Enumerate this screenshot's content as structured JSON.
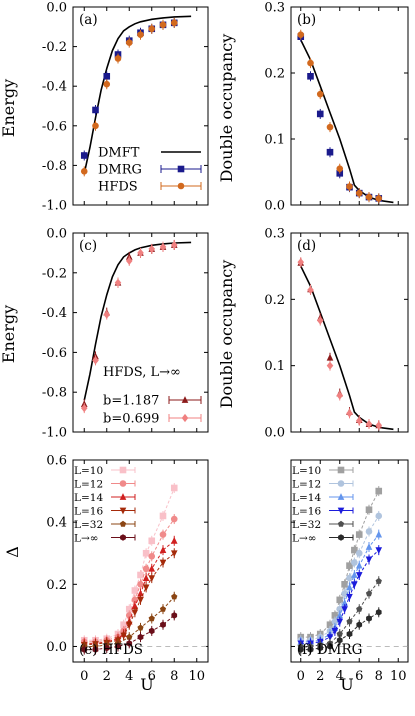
{
  "chart_data": [
    {
      "id": "a",
      "type": "line",
      "panel_label": "(a)",
      "xlabel": "",
      "ylabel": "Energy",
      "xlim": [
        -1,
        11
      ],
      "ylim": [
        -1.0,
        0.0
      ],
      "yticks": [
        "0.0",
        "-0.2",
        "-0.4",
        "-0.6",
        "-0.8",
        "-1.0"
      ],
      "legend": {
        "placement": "bottom-left",
        "entries": [
          "DMFT",
          "DMRG",
          "HFDS"
        ]
      },
      "series": [
        {
          "name": "DMFT",
          "style": "line",
          "color": "#000000",
          "x": [
            0,
            0.5,
            1,
            1.5,
            2,
            2.5,
            3,
            3.5,
            4,
            4.5,
            5,
            6,
            7,
            8,
            9.5
          ],
          "y": [
            -0.84,
            -0.71,
            -0.56,
            -0.42,
            -0.31,
            -0.22,
            -0.16,
            -0.12,
            -0.1,
            -0.085,
            -0.075,
            -0.062,
            -0.055,
            -0.05,
            -0.047
          ]
        },
        {
          "name": "DMRG",
          "style": "square",
          "color": "#1a1a8c",
          "x": [
            0,
            1,
            2,
            3,
            4,
            5,
            6,
            7,
            8
          ],
          "y": [
            -0.75,
            -0.52,
            -0.35,
            -0.24,
            -0.17,
            -0.13,
            -0.11,
            -0.09,
            -0.08
          ]
        },
        {
          "name": "HFDS",
          "style": "circle",
          "color": "#d2691e",
          "x": [
            0,
            1,
            2,
            3,
            4,
            5,
            6,
            7,
            8
          ],
          "y": [
            -0.83,
            -0.6,
            -0.39,
            -0.26,
            -0.18,
            -0.14,
            -0.11,
            -0.09,
            -0.08
          ]
        }
      ]
    },
    {
      "id": "b",
      "type": "line",
      "panel_label": "(b)",
      "xlabel": "",
      "ylabel": "Double occupancy",
      "xlim": [
        -1,
        11
      ],
      "ylim": [
        0.0,
        0.3
      ],
      "yticks": [
        "0.3",
        "0.2",
        "0.1",
        "0.0"
      ],
      "series": [
        {
          "name": "DMFT",
          "style": "line",
          "color": "#000000",
          "x": [
            0,
            1,
            2,
            3,
            4,
            5,
            5.5,
            6,
            7,
            8,
            9.5
          ],
          "y": [
            0.25,
            0.22,
            0.18,
            0.14,
            0.1,
            0.055,
            0.03,
            0.022,
            0.012,
            0.007,
            0.004
          ]
        },
        {
          "name": "DMRG",
          "style": "square",
          "color": "#1a1a8c",
          "x": [
            0,
            1,
            2,
            3,
            4,
            5,
            6,
            7,
            8
          ],
          "y": [
            0.255,
            0.195,
            0.138,
            0.08,
            0.048,
            0.027,
            0.018,
            0.012,
            0.01
          ]
        },
        {
          "name": "HFDS",
          "style": "circle",
          "color": "#d2691e",
          "x": [
            0,
            1,
            2,
            3,
            4,
            5,
            6,
            7,
            8
          ],
          "y": [
            0.258,
            0.215,
            0.168,
            0.118,
            0.055,
            0.028,
            0.018,
            0.012,
            0.01
          ]
        }
      ]
    },
    {
      "id": "c",
      "type": "line",
      "panel_label": "(c)",
      "xlabel": "",
      "ylabel": "Energy",
      "xlim": [
        -1,
        11
      ],
      "ylim": [
        -1.0,
        0.0
      ],
      "yticks": [
        "0.0",
        "-0.2",
        "-0.4",
        "-0.6",
        "-0.8",
        "-1.0"
      ],
      "legend": {
        "placement": "bottom-left",
        "title": "HFDS, L→∞",
        "entries": [
          "b=1.187",
          "b=0.699"
        ]
      },
      "series": [
        {
          "name": "DMFT",
          "style": "line",
          "color": "#000000",
          "x": [
            0,
            0.5,
            1,
            1.5,
            2,
            2.5,
            3,
            3.5,
            4,
            4.5,
            5,
            6,
            7,
            8,
            9.5
          ],
          "y": [
            -0.84,
            -0.71,
            -0.56,
            -0.42,
            -0.31,
            -0.22,
            -0.16,
            -0.12,
            -0.1,
            -0.085,
            -0.075,
            -0.062,
            -0.055,
            -0.05,
            -0.047
          ]
        },
        {
          "name": "b=1.187",
          "style": "triangle",
          "color": "#8b1a1a",
          "x": [
            0,
            1,
            2,
            3,
            4,
            5,
            6,
            7,
            8
          ],
          "y": [
            -0.86,
            -0.62,
            -0.4,
            -0.25,
            -0.12,
            -0.1,
            -0.08,
            -0.07,
            -0.06
          ]
        },
        {
          "name": "b=0.699",
          "style": "diamond",
          "color": "#f08080",
          "x": [
            0,
            1,
            2,
            3,
            4,
            5,
            6,
            7,
            8
          ],
          "y": [
            -0.88,
            -0.64,
            -0.41,
            -0.25,
            -0.14,
            -0.1,
            -0.08,
            -0.07,
            -0.06
          ]
        }
      ]
    },
    {
      "id": "d",
      "type": "line",
      "panel_label": "(d)",
      "xlabel": "",
      "ylabel": "Double occupancy",
      "xlim": [
        -1,
        11
      ],
      "ylim": [
        0.0,
        0.3
      ],
      "yticks": [
        "0.3",
        "0.2",
        "0.1",
        "0.0"
      ],
      "series": [
        {
          "name": "DMFT",
          "style": "line",
          "color": "#000000",
          "x": [
            0,
            1,
            2,
            3,
            4,
            5,
            5.5,
            6,
            7,
            8,
            9.5
          ],
          "y": [
            0.25,
            0.22,
            0.18,
            0.14,
            0.1,
            0.055,
            0.03,
            0.022,
            0.012,
            0.007,
            0.004
          ]
        },
        {
          "name": "b=1.187",
          "style": "triangle",
          "color": "#8b1a1a",
          "x": [
            0,
            1,
            2,
            3,
            4,
            5,
            6,
            7,
            8
          ],
          "y": [
            0.255,
            0.215,
            0.172,
            0.112,
            0.058,
            0.03,
            0.018,
            0.012,
            0.01
          ]
        },
        {
          "name": "b=0.699",
          "style": "diamond",
          "color": "#f08080",
          "x": [
            0,
            1,
            2,
            3,
            4,
            5,
            6,
            7,
            8
          ],
          "y": [
            0.256,
            0.214,
            0.168,
            0.1,
            0.055,
            0.028,
            0.017,
            0.012,
            0.01
          ]
        }
      ]
    },
    {
      "id": "e",
      "type": "line",
      "panel_label": "(e) HFDS",
      "xlabel": "U",
      "ylabel": "Δ",
      "xlim": [
        -1,
        11
      ],
      "ylim": [
        -0.05,
        0.6
      ],
      "xticks": [
        "0",
        "2",
        "4",
        "6",
        "8",
        "10"
      ],
      "yticks": [
        "0.6",
        "0.4",
        "0.2",
        "0.0"
      ],
      "legend": {
        "placement": "top-left",
        "entries": [
          "L=10",
          "L=12",
          "L=14",
          "L=16",
          "L=32",
          "L→∞"
        ]
      },
      "series": [
        {
          "name": "L=10",
          "style": "square",
          "color": "#f9c0c8",
          "x": [
            0,
            1,
            2,
            3,
            3.5,
            4,
            4.5,
            5,
            5.5,
            6,
            7,
            8
          ],
          "y": [
            0.02,
            0.02,
            0.025,
            0.04,
            0.07,
            0.12,
            0.18,
            0.23,
            0.3,
            0.34,
            0.42,
            0.51
          ]
        },
        {
          "name": "L=12",
          "style": "circle",
          "color": "#f08a8a",
          "x": [
            0,
            1,
            2,
            3,
            3.5,
            4,
            4.5,
            5,
            5.5,
            6,
            7,
            8
          ],
          "y": [
            0.015,
            0.015,
            0.02,
            0.03,
            0.05,
            0.1,
            0.15,
            0.2,
            0.25,
            0.29,
            0.36,
            0.41
          ]
        },
        {
          "name": "L=14",
          "style": "triangle",
          "color": "#d02020",
          "x": [
            0,
            1,
            2,
            3,
            3.5,
            4,
            4.5,
            5,
            5.5,
            6,
            7,
            8
          ],
          "y": [
            0.01,
            0.01,
            0.015,
            0.025,
            0.04,
            0.08,
            0.13,
            0.17,
            0.22,
            0.25,
            0.31,
            0.34
          ]
        },
        {
          "name": "L=16",
          "style": "tri-down",
          "color": "#a52a0a",
          "x": [
            0,
            1,
            2,
            3,
            3.5,
            4,
            4.5,
            5,
            5.5,
            6,
            7,
            8
          ],
          "y": [
            0.005,
            0.008,
            0.012,
            0.02,
            0.035,
            0.07,
            0.11,
            0.15,
            0.19,
            0.22,
            0.27,
            0.3
          ]
        },
        {
          "name": "L=32",
          "style": "pentagon",
          "color": "#8b4513",
          "x": [
            0,
            1,
            2,
            3,
            4,
            5,
            6,
            7,
            8
          ],
          "y": [
            0.0,
            0.0,
            0.005,
            0.01,
            0.03,
            0.06,
            0.09,
            0.12,
            0.16
          ]
        },
        {
          "name": "L→∞",
          "style": "hexagon",
          "color": "#6b0f1a",
          "x": [
            0,
            1,
            2,
            3,
            4,
            5,
            6,
            7,
            8
          ],
          "y": [
            -0.01,
            -0.01,
            -0.005,
            0.0,
            0.01,
            0.03,
            0.05,
            0.07,
            0.1
          ]
        }
      ]
    },
    {
      "id": "f",
      "type": "line",
      "panel_label": "(f) DMRG",
      "xlabel": "U",
      "ylabel": "",
      "xlim": [
        -1,
        11
      ],
      "ylim": [
        -0.05,
        0.6
      ],
      "xticks": [
        "0",
        "2",
        "4",
        "6",
        "8",
        "10"
      ],
      "legend": {
        "placement": "top-left",
        "entries": [
          "L=10",
          "L=12",
          "L=14",
          "L=16",
          "L=32",
          "L→∞"
        ]
      },
      "series": [
        {
          "name": "L=10",
          "style": "square",
          "color": "#a0a0a0",
          "x": [
            0,
            1,
            2,
            3,
            3.5,
            4,
            4.5,
            5,
            5.5,
            6,
            7,
            8
          ],
          "y": [
            0.03,
            0.03,
            0.04,
            0.07,
            0.1,
            0.15,
            0.2,
            0.26,
            0.31,
            0.36,
            0.44,
            0.5
          ]
        },
        {
          "name": "L=12",
          "style": "circle",
          "color": "#b0c4de",
          "x": [
            0,
            1,
            2,
            3,
            3.5,
            4,
            4.5,
            5,
            5.5,
            6,
            7,
            8
          ],
          "y": [
            0.02,
            0.02,
            0.03,
            0.05,
            0.08,
            0.12,
            0.17,
            0.22,
            0.27,
            0.3,
            0.37,
            0.42
          ]
        },
        {
          "name": "L=14",
          "style": "triangle",
          "color": "#6495ed",
          "x": [
            0,
            1,
            2,
            3,
            3.5,
            4,
            4.5,
            5,
            5.5,
            6,
            7,
            8
          ],
          "y": [
            0.015,
            0.015,
            0.02,
            0.04,
            0.06,
            0.1,
            0.14,
            0.19,
            0.23,
            0.26,
            0.32,
            0.36
          ]
        },
        {
          "name": "L=16",
          "style": "tri-down",
          "color": "#1c1cdc",
          "x": [
            0,
            1,
            2,
            3,
            3.5,
            4,
            4.5,
            5,
            5.5,
            6,
            7,
            8
          ],
          "y": [
            0.01,
            0.01,
            0.015,
            0.03,
            0.05,
            0.08,
            0.12,
            0.16,
            0.2,
            0.23,
            0.28,
            0.31
          ]
        },
        {
          "name": "L=32",
          "style": "pentagon",
          "color": "#505050",
          "x": [
            0,
            1,
            2,
            3,
            4,
            5,
            6,
            7,
            8
          ],
          "y": [
            0.0,
            0.0,
            0.005,
            0.01,
            0.04,
            0.08,
            0.12,
            0.17,
            0.21
          ]
        },
        {
          "name": "L→∞",
          "style": "hexagon",
          "color": "#2a2a2a",
          "x": [
            0,
            1,
            2,
            3,
            4,
            5,
            6,
            7,
            8
          ],
          "y": [
            -0.01,
            -0.01,
            -0.005,
            0.0,
            0.02,
            0.04,
            0.07,
            0.09,
            0.11
          ]
        }
      ]
    }
  ]
}
